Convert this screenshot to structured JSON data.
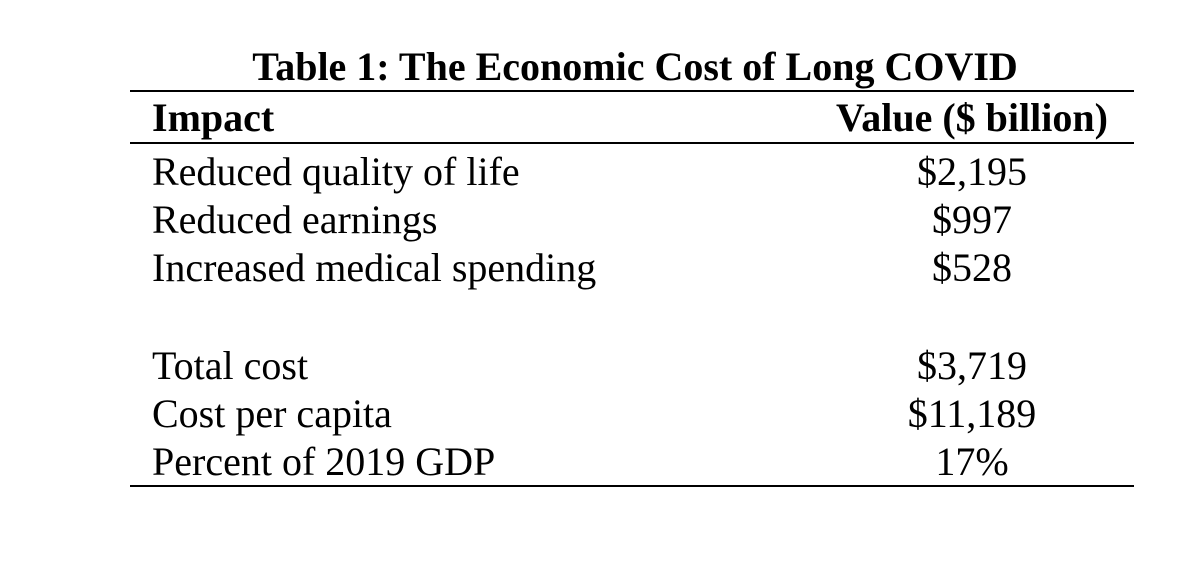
{
  "table": {
    "title": "Table 1: The Economic Cost of Long COVID",
    "headers": {
      "impact": "Impact",
      "value": "Value ($ billion)"
    },
    "groups": [
      {
        "rows": [
          {
            "impact": "Reduced quality of life",
            "value": "$2,195"
          },
          {
            "impact": "Reduced earnings",
            "value": "$997"
          },
          {
            "impact": "Increased medical spending",
            "value": "$528"
          }
        ]
      },
      {
        "rows": [
          {
            "impact": "Total cost",
            "value": "$3,719"
          },
          {
            "impact": "Cost per capita",
            "value": "$11,189"
          },
          {
            "impact": "Percent of 2019 GDP",
            "value": "17%"
          }
        ]
      }
    ]
  }
}
